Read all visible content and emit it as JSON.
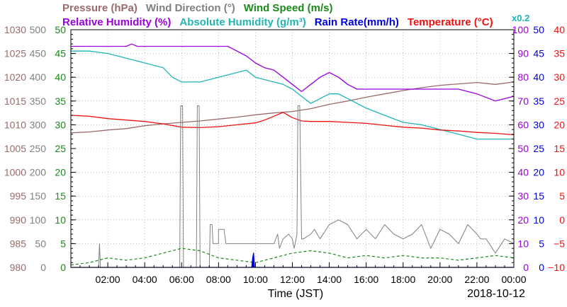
{
  "chart_data": {
    "type": "line",
    "date": "2018-10-12",
    "xlabel": "Time (JST)",
    "x_ticks": [
      "02:00",
      "04:00",
      "06:00",
      "08:00",
      "10:00",
      "12:00",
      "14:00",
      "16:00",
      "18:00",
      "20:00",
      "22:00",
      "00:00"
    ],
    "x_range_hours": [
      0,
      24
    ],
    "grid": true,
    "legend": {
      "line1": [
        {
          "text": "Pressure (hPa)",
          "color": "#9a6b6b"
        },
        {
          "text": "Wind Direction (°)",
          "color": "#808080"
        },
        {
          "text": "Wind Speed (m/s)",
          "color": "#1a8a1a"
        }
      ],
      "line2": [
        {
          "text": "Relative Humidity (%)",
          "color": "#9900dd"
        },
        {
          "text": "Absolute Humidity (g/m³)",
          "color": "#22b5b5"
        },
        {
          "text": "Rain Rate(mm/h)",
          "color": "#0000dd"
        },
        {
          "text": "Temperature (°C)",
          "color": "#ee1111"
        },
        {
          "text": "x0.2",
          "color": "#22b5b5"
        }
      ]
    },
    "axes": {
      "pressure": {
        "range": [
          980,
          1030
        ],
        "color": "#9a6b6b",
        "labels": [
          "980",
          "985",
          "990",
          "995",
          "1000",
          "1005",
          "1010",
          "1015",
          "1020",
          "1025",
          "1030"
        ]
      },
      "wind_direction": {
        "range": [
          0,
          500
        ],
        "color": "#808080",
        "labels": [
          "0",
          "50",
          "100",
          "150",
          "200",
          "250",
          "300",
          "350",
          "400",
          "450",
          "500"
        ]
      },
      "wind_speed": {
        "range": [
          0,
          50
        ],
        "color": "#1a8a1a",
        "labels": [
          "0",
          "5",
          "10",
          "15",
          "20",
          "25",
          "30",
          "35",
          "40",
          "45",
          "50"
        ]
      },
      "humidity": {
        "range": [
          0,
          100
        ],
        "color": "#9900dd",
        "labels": [
          "0",
          "10",
          "20",
          "30",
          "40",
          "50",
          "60",
          "70",
          "80",
          "90",
          "100"
        ]
      },
      "rain_rate": {
        "range": [
          0,
          50
        ],
        "color": "#0000dd",
        "labels": [
          "0",
          "5",
          "10",
          "15",
          "20",
          "25",
          "30",
          "35",
          "40",
          "45",
          "50"
        ]
      },
      "temperature": {
        "range": [
          -10,
          40
        ],
        "color": "#ee1111",
        "labels": [
          "−10",
          "−5",
          "0",
          "5",
          "10",
          "15",
          "20",
          "25",
          "30",
          "35",
          "40"
        ]
      }
    },
    "series": [
      {
        "name": "Pressure (hPa)",
        "axis": "pressure",
        "color": "#9a6b6b",
        "x": [
          0,
          1,
          2,
          3,
          4,
          5,
          6,
          7,
          8,
          9,
          10,
          11,
          12,
          13,
          14,
          15,
          16,
          17,
          18,
          19,
          20,
          21,
          22,
          23,
          24
        ],
        "y": [
          1008.3,
          1008.5,
          1008.9,
          1009.2,
          1009.8,
          1010.2,
          1010.5,
          1010.8,
          1011.2,
          1011.6,
          1012.1,
          1012.5,
          1012.8,
          1013.4,
          1014.3,
          1015,
          1015.8,
          1016.5,
          1017.2,
          1017.8,
          1018.3,
          1018.6,
          1018.9,
          1018.5,
          1019
        ]
      },
      {
        "name": "Relative Humidity (%)",
        "axis": "humidity",
        "color": "#9900dd",
        "x": [
          0,
          1,
          2,
          3,
          3.3,
          3.6,
          4,
          5,
          6,
          7,
          8,
          8.5,
          9,
          9.5,
          10,
          10.5,
          11,
          11.5,
          12,
          12.5,
          13,
          13.5,
          14,
          14.5,
          15,
          15.5,
          16,
          17,
          18,
          19,
          20,
          21,
          22,
          23,
          24
        ],
        "y": [
          93,
          93,
          93,
          93,
          94,
          93,
          93,
          93,
          93,
          93,
          93,
          93,
          91,
          89,
          86,
          84,
          83,
          80,
          77,
          74,
          77,
          80,
          82,
          80,
          77,
          75,
          75,
          75,
          75,
          75,
          75,
          75,
          73,
          70,
          72
        ]
      },
      {
        "name": "Absolute Humidity (g/m³)",
        "axis": "humidity",
        "color": "#22b5b5",
        "x": [
          0,
          1,
          2,
          3,
          4,
          5,
          5.5,
          6,
          7,
          8,
          9,
          9.5,
          10,
          10.5,
          11,
          11.5,
          12,
          12.5,
          13,
          13.5,
          14,
          14.5,
          15,
          16,
          17,
          18,
          19,
          20,
          21,
          22,
          22.5,
          23,
          24
        ],
        "y": [
          91,
          91,
          90,
          88,
          86,
          84,
          80,
          78,
          78,
          80,
          82,
          83,
          80,
          79,
          78,
          77,
          75,
          72,
          69,
          71,
          73,
          73,
          71,
          67,
          64,
          61,
          60,
          58,
          56,
          54,
          54,
          54,
          54
        ]
      },
      {
        "name": "Temperature (°C)",
        "axis": "temperature",
        "color": "#ee1111",
        "x": [
          0,
          1,
          2,
          3,
          4,
          5,
          6,
          7,
          8,
          9,
          10,
          10.5,
          11,
          11.5,
          12,
          12.5,
          13,
          14,
          15,
          16,
          17,
          18,
          19,
          20,
          21,
          22,
          23,
          24
        ],
        "y": [
          22,
          21.8,
          21.3,
          21,
          20.7,
          20.2,
          19.5,
          19.4,
          19.6,
          20,
          20.4,
          21,
          21.8,
          22.6,
          21.5,
          20.8,
          20.7,
          20.7,
          20.5,
          20.3,
          19.9,
          19.5,
          19.3,
          18.9,
          18.7,
          18.4,
          18.2,
          17.9
        ]
      },
      {
        "name": "Wind Direction (°)",
        "axis": "wind_direction",
        "color": "#808080",
        "x": [
          0,
          1.5,
          1.55,
          1.6,
          5.9,
          5.95,
          6.05,
          6.1,
          6.8,
          6.85,
          6.95,
          7,
          7.5,
          7.55,
          7.65,
          7.7,
          8,
          8,
          8.3,
          8.4,
          9,
          9.5,
          10,
          11,
          11.2,
          11.3,
          11.5,
          11.8,
          12,
          12.1,
          12.25,
          12.3,
          12.4,
          12.5,
          12.55,
          12.6,
          13,
          13.2,
          13.5,
          14,
          14.5,
          15,
          15.5,
          16,
          16.5,
          17,
          17.5,
          18,
          18.5,
          19,
          19.5,
          20,
          20.5,
          21,
          21.5,
          22,
          22.2,
          22.5,
          23,
          23.5,
          24
        ],
        "y": [
          0,
          0,
          50,
          0,
          0,
          340,
          340,
          0,
          0,
          340,
          340,
          0,
          0,
          90,
          90,
          50,
          50,
          80,
          80,
          50,
          50,
          50,
          50,
          50,
          70,
          40,
          60,
          70,
          60,
          40,
          70,
          340,
          340,
          60,
          60,
          60,
          70,
          80,
          60,
          90,
          100,
          90,
          60,
          80,
          60,
          90,
          70,
          60,
          70,
          90,
          40,
          80,
          70,
          50,
          90,
          70,
          60,
          60,
          30,
          60,
          50
        ]
      },
      {
        "name": "Wind Speed (m/s)",
        "axis": "wind_speed",
        "color": "#1a8a1a",
        "x": [
          0,
          1,
          2,
          3,
          4,
          5,
          6,
          7,
          8,
          9,
          10,
          11,
          12,
          13,
          14,
          15,
          16,
          17,
          18,
          19,
          20,
          21,
          22,
          23,
          24
        ],
        "y": [
          0.5,
          1,
          2,
          1.5,
          2,
          3,
          4,
          3.5,
          2,
          1.5,
          1,
          2,
          3,
          3.5,
          3,
          2,
          2.5,
          2,
          2.5,
          2,
          2,
          1.5,
          2,
          2.5,
          2
        ]
      },
      {
        "name": "Rain Rate(mm/h)",
        "axis": "rain_rate",
        "color": "#0000dd",
        "x": [
          0,
          9.8,
          9.85,
          9.9,
          9.95,
          24
        ],
        "y": [
          0,
          0,
          2,
          3,
          0,
          0
        ]
      }
    ]
  }
}
